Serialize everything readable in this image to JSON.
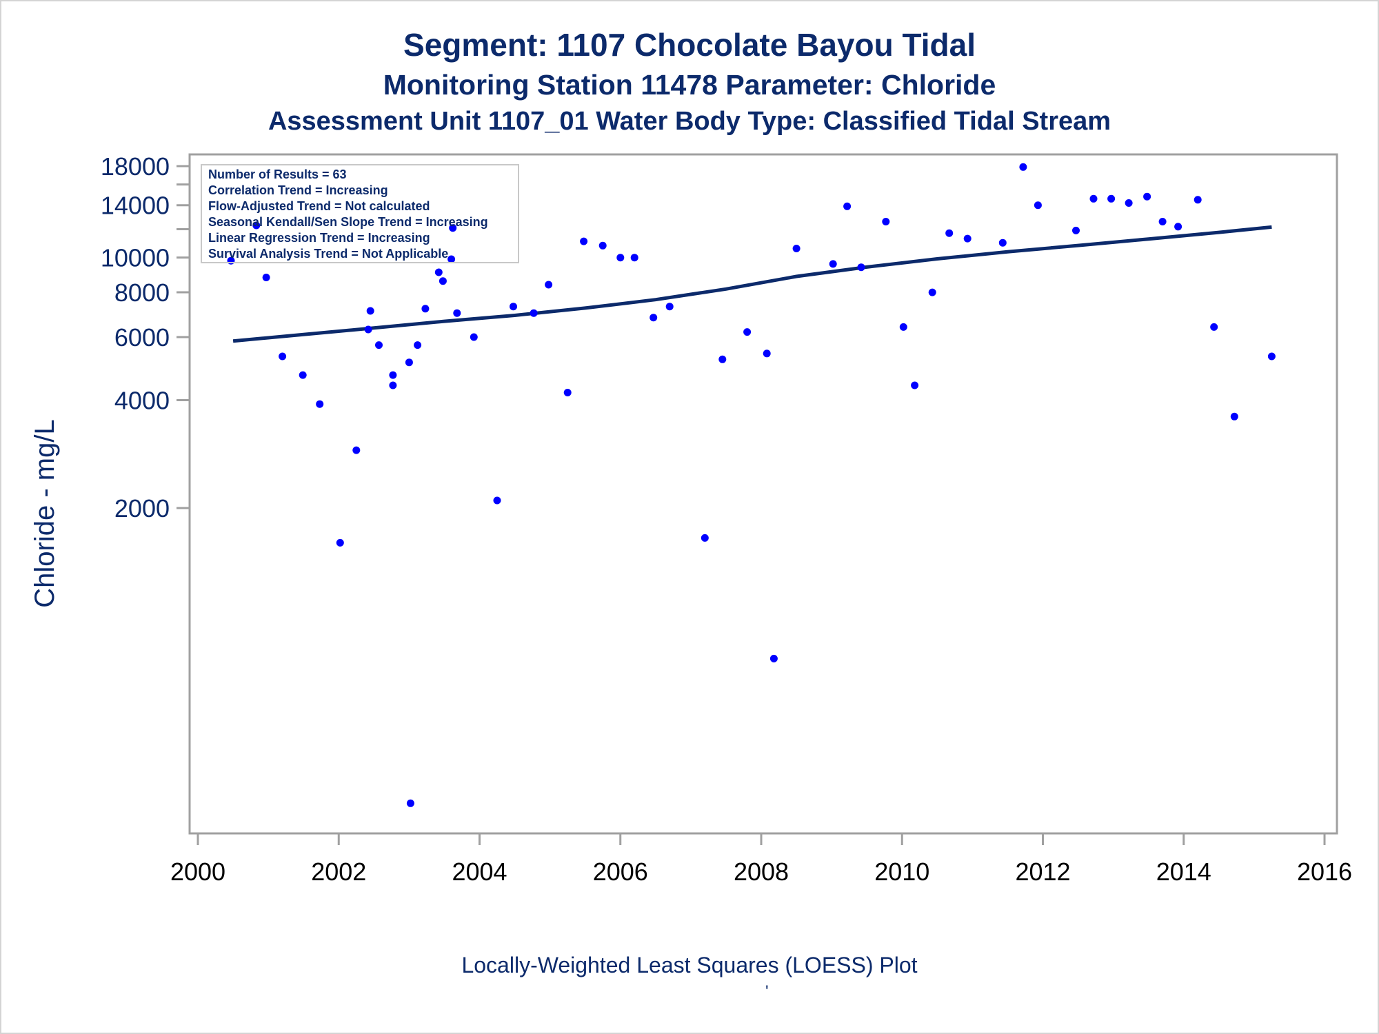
{
  "titles": {
    "line1": "Segment: 1107  Chocolate Bayou Tidal",
    "line2": "Monitoring Station 11478 Parameter: Chloride",
    "line3": "Assessment Unit 1107_01   Water Body Type: Classified Tidal Stream"
  },
  "footnote": "Locally-Weighted Least Squares (LOESS) Plot",
  "footmark": "'",
  "colors": {
    "text": "#0c2a6b",
    "points": "#0000ff",
    "line": "#0c2a6b",
    "frame": "#a0a0a0"
  },
  "chart_data": {
    "type": "scatter",
    "title": "",
    "xlabel": "",
    "ylabel": "Chloride - mg/L",
    "xlim": [
      2000,
      2016
    ],
    "xticks": [
      2000,
      2002,
      2004,
      2006,
      2008,
      2010,
      2012,
      2014,
      2016
    ],
    "y_scale": "log",
    "ylim": [
      300,
      18900
    ],
    "yticks": [
      2000,
      4000,
      6000,
      8000,
      10000,
      14000,
      18000
    ],
    "ytick_labels": [
      "2000",
      "4000",
      "6000",
      "8000",
      "10000",
      "14000",
      "18000"
    ],
    "yminor_ticks": [
      12000,
      16000
    ],
    "grid": false,
    "legend": "none",
    "stats_box": {
      "position": "top-left",
      "lines": [
        "Number of Results = 63",
        "Correlation Trend = Increasing",
        "Flow-Adjusted Trend = Not calculated",
        "Seasonal Kendall/Sen Slope Trend = Increasing",
        "Linear Regression Trend = Increasing",
        "Survival Analysis Trend = Not Applicable"
      ]
    },
    "series": [
      {
        "type": "scatter",
        "x": [
          2000.47,
          2000.83,
          2000.97,
          2001.2,
          2001.49,
          2001.73,
          2002.02,
          2002.25,
          2002.42,
          2002.45,
          2002.57,
          2002.77,
          2002.77,
          2003.0,
          2003.02,
          2003.12,
          2003.23,
          2003.42,
          2003.48,
          2003.6,
          2003.62,
          2003.68,
          2003.92,
          2004.25,
          2004.48,
          2004.77,
          2004.98,
          2005.25,
          2005.48,
          2005.75,
          2006.0,
          2006.2,
          2006.47,
          2006.7,
          2007.2,
          2007.45,
          2007.8,
          2008.08,
          2008.18,
          2008.5,
          2009.02,
          2009.22,
          2009.42,
          2009.77,
          2010.02,
          2010.18,
          2010.43,
          2010.67,
          2010.93,
          2011.43,
          2011.72,
          2011.93,
          2012.47,
          2012.72,
          2012.97,
          2013.22,
          2013.48,
          2013.7,
          2013.92,
          2014.2,
          2014.43,
          2014.72,
          2015.25
        ],
        "y": [
          9800,
          12300,
          8800,
          5300,
          4700,
          3900,
          1600,
          2900,
          6300,
          7100,
          5700,
          4700,
          4400,
          5100,
          300,
          5700,
          7200,
          9100,
          8600,
          9900,
          12100,
          7000,
          6000,
          2100,
          7300,
          7000,
          8400,
          4200,
          11100,
          10800,
          10000,
          10000,
          6800,
          7300,
          1650,
          5200,
          6200,
          5400,
          760,
          10600,
          9600,
          13900,
          9400,
          12600,
          6400,
          4400,
          8000,
          11700,
          11300,
          11000,
          17900,
          14000,
          11900,
          14600,
          14600,
          14200,
          14800,
          12600,
          12200,
          14500,
          6400,
          3600,
          5300
        ]
      },
      {
        "type": "line",
        "name": "LOESS",
        "x": [
          2000.5,
          2001.5,
          2002.5,
          2003.5,
          2004.5,
          2005.5,
          2006.5,
          2007.5,
          2008.5,
          2009.5,
          2010.5,
          2011.5,
          2012.5,
          2013.5,
          2014.5,
          2015.25
        ],
        "y": [
          5850,
          6100,
          6360,
          6640,
          6900,
          7230,
          7630,
          8170,
          8860,
          9410,
          9920,
          10380,
          10810,
          11270,
          11760,
          12170
        ]
      }
    ]
  }
}
